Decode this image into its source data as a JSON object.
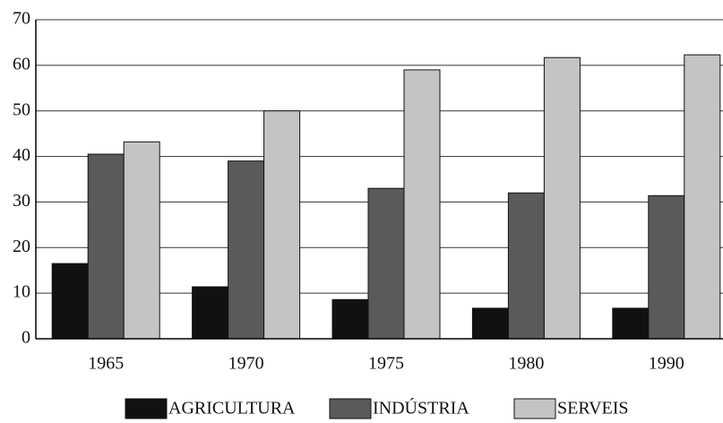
{
  "chart_data": {
    "type": "bar",
    "categories": [
      "1965",
      "1970",
      "1975",
      "1980",
      "1990"
    ],
    "series": [
      {
        "name": "AGRICULTURA",
        "color": "#111111",
        "values": [
          16.5,
          11.4,
          8.6,
          6.7,
          6.7
        ]
      },
      {
        "name": "INDÚSTRIA",
        "color": "#5a5a5a",
        "values": [
          40.5,
          39,
          33,
          32,
          31.4
        ]
      },
      {
        "name": "SERVEIS",
        "color": "#c4c4c4",
        "values": [
          43.2,
          50,
          59,
          61.7,
          62.3
        ]
      }
    ],
    "ylim": [
      0,
      70
    ],
    "yticks": [
      0,
      10,
      20,
      30,
      40,
      50,
      60,
      70
    ],
    "grid": true,
    "legend": "bottom"
  }
}
